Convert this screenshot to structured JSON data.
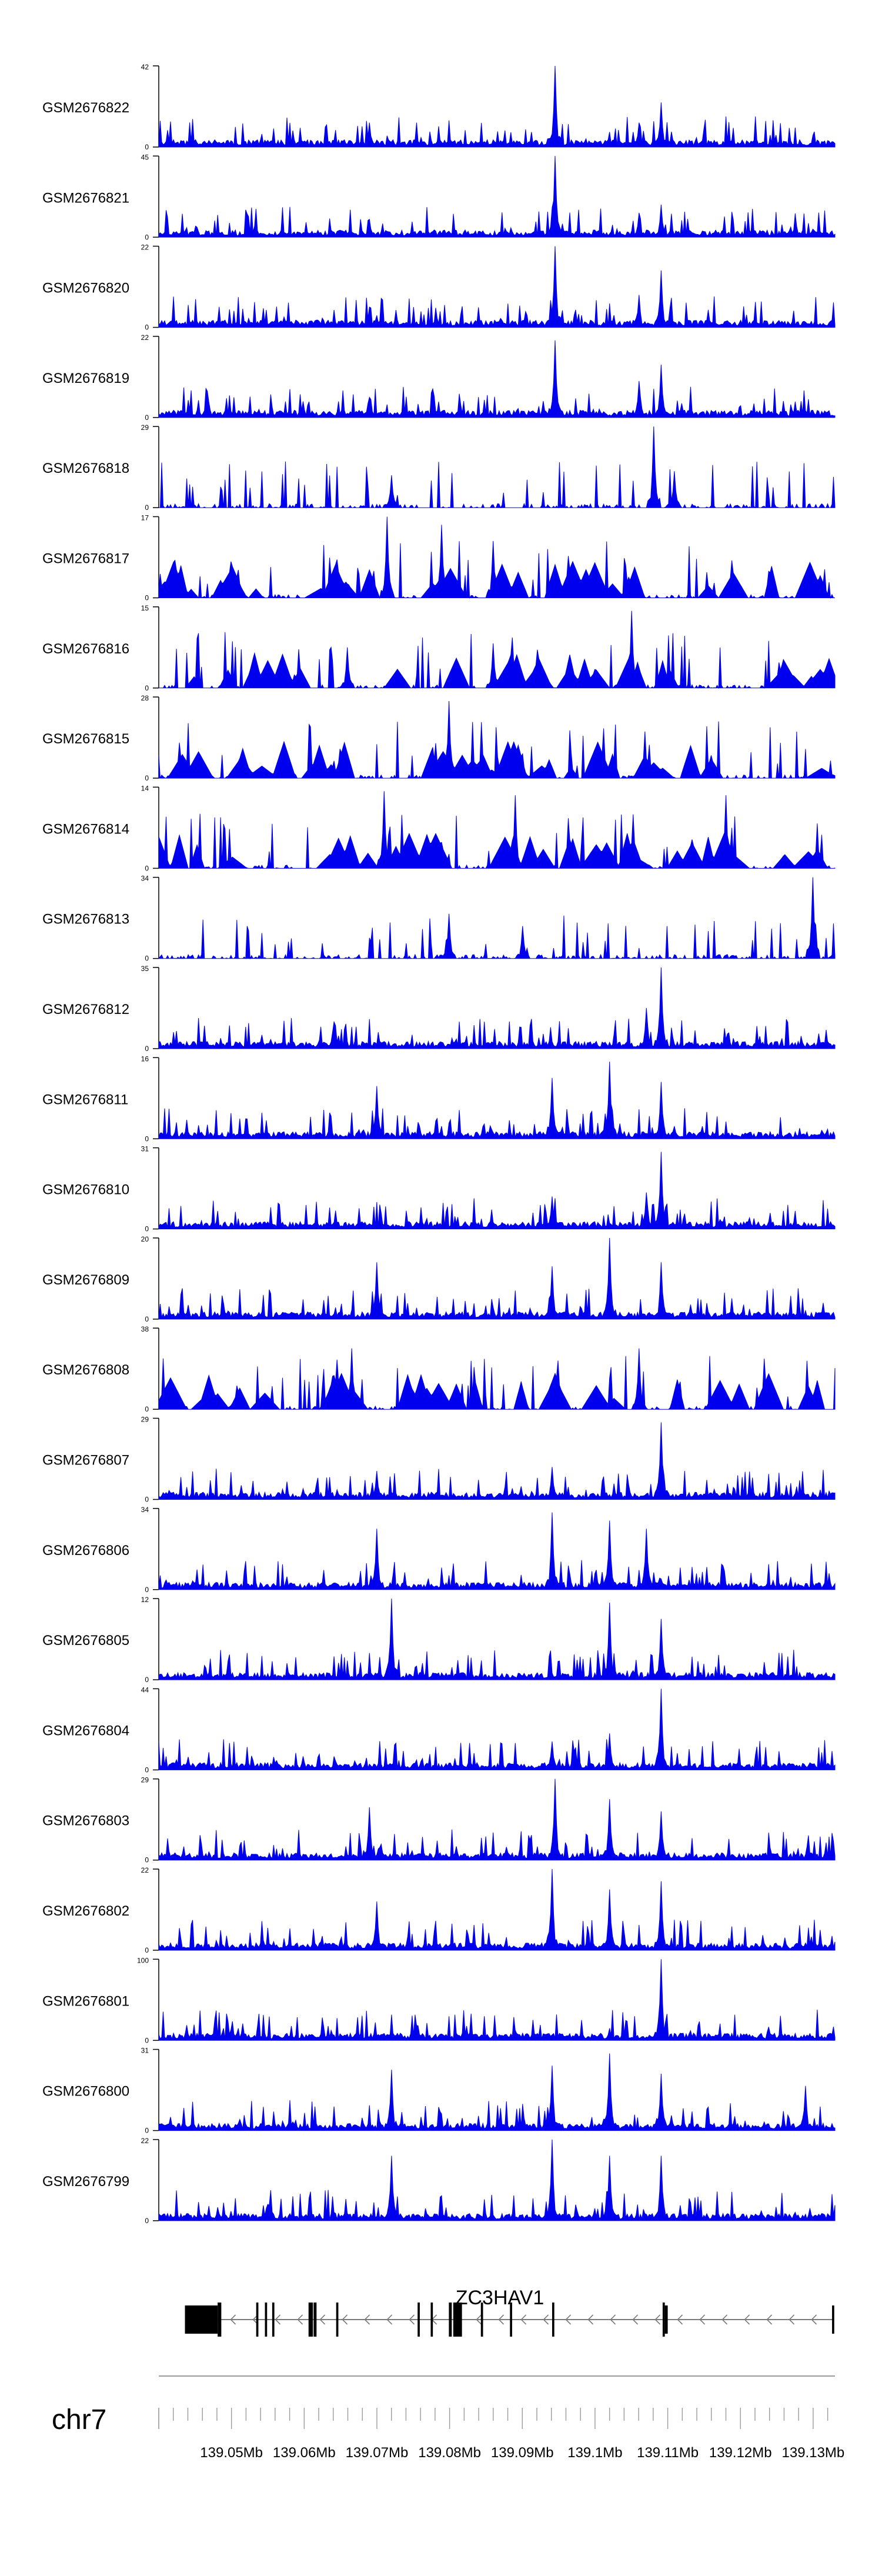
{
  "chart_data": {
    "type": "area",
    "chromosome": "chr7",
    "gene": "ZC3HAV1",
    "xlim": [
      139.04,
      139.133
    ],
    "x_unit": "Mb",
    "x_ticks": [
      "139.05Mb",
      "139.06Mb",
      "139.07Mb",
      "139.08Mb",
      "139.09Mb",
      "139.1Mb",
      "139.11Mb",
      "139.12Mb",
      "139.13Mb"
    ],
    "x_tick_values": [
      139.05,
      139.06,
      139.07,
      139.08,
      139.09,
      139.1,
      139.11,
      139.12,
      139.13
    ],
    "track_color": "#0000ee",
    "tracks": [
      {
        "name": "GSM2676822",
        "ymin": "0",
        "ymax": "42",
        "peaks": [
          [
            139.069,
            0.3
          ],
          [
            139.0945,
            1.0
          ],
          [
            139.109,
            0.55
          ],
          [
            139.106,
            0.3
          ]
        ],
        "style": "dense",
        "seed": 1
      },
      {
        "name": "GSM2676821",
        "ymin": "0",
        "ymax": "45",
        "peaks": [
          [
            139.069,
            0.22
          ],
          [
            139.0945,
            1.0
          ],
          [
            139.109,
            0.4
          ],
          [
            139.106,
            0.3
          ]
        ],
        "style": "dense",
        "seed": 2
      },
      {
        "name": "GSM2676820",
        "ymin": "0",
        "ymax": "22",
        "peaks": [
          [
            139.069,
            0.25
          ],
          [
            139.0945,
            1.0
          ],
          [
            139.109,
            0.7
          ],
          [
            139.106,
            0.4
          ]
        ],
        "style": "dense",
        "seed": 3
      },
      {
        "name": "GSM2676819",
        "ymin": "0",
        "ymax": "22",
        "peaks": [
          [
            139.069,
            0.25
          ],
          [
            139.0945,
            0.95
          ],
          [
            139.109,
            0.65
          ],
          [
            139.106,
            0.45
          ]
        ],
        "style": "dense",
        "seed": 4
      },
      {
        "name": "GSM2676818",
        "ymin": "0",
        "ymax": "29",
        "peaks": [
          [
            139.108,
            1.0
          ],
          [
            139.111,
            0.45
          ],
          [
            139.072,
            0.4
          ]
        ],
        "style": "sparse",
        "seed": 5
      },
      {
        "name": "GSM2676817",
        "ymin": "0",
        "ymax": "17",
        "peaks": [
          [
            139.0715,
            1.0
          ],
          [
            139.079,
            0.9
          ],
          [
            139.086,
            0.7
          ]
        ],
        "style": "triangles",
        "seed": 6
      },
      {
        "name": "GSM2676816",
        "ymin": "0",
        "ymax": "15",
        "peaks": [
          [
            139.105,
            0.95
          ],
          [
            139.086,
            0.55
          ],
          [
            139.066,
            0.5
          ]
        ],
        "style": "triangles",
        "seed": 7
      },
      {
        "name": "GSM2676815",
        "ymin": "0",
        "ymax": "28",
        "peaks": [
          [
            139.08,
            0.95
          ],
          [
            139.09,
            0.3
          ]
        ],
        "style": "triangles",
        "seed": 8
      },
      {
        "name": "GSM2676814",
        "ymin": "0",
        "ymax": "14",
        "peaks": [
          [
            139.071,
            0.95
          ],
          [
            139.089,
            0.9
          ],
          [
            139.118,
            0.9
          ]
        ],
        "style": "triangles",
        "seed": 9
      },
      {
        "name": "GSM2676813",
        "ymin": "0",
        "ymax": "34",
        "peaks": [
          [
            139.13,
            1.0
          ],
          [
            139.08,
            0.55
          ],
          [
            139.09,
            0.4
          ]
        ],
        "style": "sparse",
        "seed": 10
      },
      {
        "name": "GSM2676812",
        "ymin": "0",
        "ymax": "35",
        "peaks": [
          [
            139.109,
            1.0
          ],
          [
            139.107,
            0.5
          ]
        ],
        "style": "dense",
        "seed": 11
      },
      {
        "name": "GSM2676811",
        "ymin": "0",
        "ymax": "16",
        "peaks": [
          [
            139.102,
            0.95
          ],
          [
            139.094,
            0.75
          ],
          [
            139.109,
            0.7
          ],
          [
            139.07,
            0.65
          ]
        ],
        "style": "dense",
        "seed": 12
      },
      {
        "name": "GSM2676810",
        "ymin": "0",
        "ymax": "31",
        "peaks": [
          [
            139.109,
            0.95
          ],
          [
            139.094,
            0.4
          ],
          [
            139.107,
            0.45
          ]
        ],
        "style": "dense",
        "seed": 13
      },
      {
        "name": "GSM2676809",
        "ymin": "0",
        "ymax": "20",
        "peaks": [
          [
            139.102,
            1.0
          ],
          [
            139.07,
            0.7
          ],
          [
            139.094,
            0.65
          ],
          [
            139.109,
            0.7
          ]
        ],
        "style": "dense",
        "seed": 14
      },
      {
        "name": "GSM2676808",
        "ymin": "0",
        "ymax": "38",
        "peaks": [
          [
            139.0665,
            0.75
          ],
          [
            139.106,
            0.75
          ],
          [
            139.095,
            0.6
          ]
        ],
        "style": "triangles",
        "seed": 15
      },
      {
        "name": "GSM2676807",
        "ymin": "0",
        "ymax": "29",
        "peaks": [
          [
            139.109,
            0.95
          ],
          [
            139.094,
            0.4
          ],
          [
            139.07,
            0.35
          ]
        ],
        "style": "dense",
        "seed": 16
      },
      {
        "name": "GSM2676806",
        "ymin": "0",
        "ymax": "34",
        "peaks": [
          [
            139.07,
            0.75
          ],
          [
            139.094,
            0.95
          ],
          [
            139.102,
            0.85
          ],
          [
            139.107,
            0.75
          ]
        ],
        "style": "dense",
        "seed": 17
      },
      {
        "name": "GSM2676805",
        "ymin": "0",
        "ymax": "12",
        "peaks": [
          [
            139.072,
            1.0
          ],
          [
            139.102,
            0.95
          ],
          [
            139.109,
            0.75
          ]
        ],
        "style": "dense",
        "seed": 18
      },
      {
        "name": "GSM2676804",
        "ymin": "0",
        "ymax": "44",
        "peaks": [
          [
            139.109,
            1.0
          ],
          [
            139.102,
            0.45
          ],
          [
            139.094,
            0.35
          ]
        ],
        "style": "dense",
        "seed": 19
      },
      {
        "name": "GSM2676803",
        "ymin": "0",
        "ymax": "29",
        "peaks": [
          [
            139.0945,
            1.0
          ],
          [
            139.069,
            0.65
          ],
          [
            139.102,
            0.75
          ],
          [
            139.109,
            0.6
          ]
        ],
        "style": "dense",
        "seed": 20
      },
      {
        "name": "GSM2676802",
        "ymin": "0",
        "ymax": "22",
        "peaks": [
          [
            139.094,
            1.0
          ],
          [
            139.109,
            0.85
          ],
          [
            139.07,
            0.6
          ],
          [
            139.102,
            0.75
          ]
        ],
        "style": "dense",
        "seed": 21
      },
      {
        "name": "GSM2676801",
        "ymin": "0",
        "ymax": "100",
        "peaks": [
          [
            139.109,
            1.0
          ],
          [
            139.102,
            0.15
          ]
        ],
        "style": "dense",
        "seed": 22
      },
      {
        "name": "GSM2676800",
        "ymin": "0",
        "ymax": "31",
        "peaks": [
          [
            139.072,
            0.75
          ],
          [
            139.102,
            0.95
          ],
          [
            139.094,
            0.8
          ],
          [
            139.109,
            0.7
          ],
          [
            139.129,
            0.55
          ]
        ],
        "style": "dense",
        "seed": 23
      },
      {
        "name": "GSM2676799",
        "ymin": "0",
        "ymax": "22",
        "peaks": [
          [
            139.072,
            0.8
          ],
          [
            139.094,
            1.0
          ],
          [
            139.102,
            0.8
          ],
          [
            139.109,
            0.8
          ]
        ],
        "style": "dense",
        "seed": 24
      }
    ],
    "gene_model": {
      "strand": "-",
      "start": 139.0436,
      "end": 139.1329,
      "exons": [
        {
          "start": 139.0436,
          "end": 139.0481,
          "kind": "utr"
        },
        {
          "start": 139.0481,
          "end": 139.0486,
          "kind": "cds"
        },
        {
          "start": 139.0534,
          "end": 139.0537,
          "kind": "cds"
        },
        {
          "start": 139.0546,
          "end": 139.0549,
          "kind": "cds"
        },
        {
          "start": 139.0556,
          "end": 139.0559,
          "kind": "cds"
        },
        {
          "start": 139.0606,
          "end": 139.0612,
          "kind": "cds"
        },
        {
          "start": 139.0613,
          "end": 139.0617,
          "kind": "cds"
        },
        {
          "start": 139.0644,
          "end": 139.0647,
          "kind": "cds"
        },
        {
          "start": 139.0756,
          "end": 139.0759,
          "kind": "cds"
        },
        {
          "start": 139.0774,
          "end": 139.0777,
          "kind": "cds"
        },
        {
          "start": 139.0799,
          "end": 139.0803,
          "kind": "cds"
        },
        {
          "start": 139.0805,
          "end": 139.0817,
          "kind": "cds"
        },
        {
          "start": 139.0843,
          "end": 139.0846,
          "kind": "cds"
        },
        {
          "start": 139.0883,
          "end": 139.0886,
          "kind": "cds"
        },
        {
          "start": 139.0941,
          "end": 139.0944,
          "kind": "cds"
        },
        {
          "start": 139.1093,
          "end": 139.1096,
          "kind": "cds"
        },
        {
          "start": 139.1096,
          "end": 139.11,
          "kind": "utr"
        },
        {
          "start": 139.1326,
          "end": 139.1329,
          "kind": "utr"
        }
      ]
    }
  }
}
